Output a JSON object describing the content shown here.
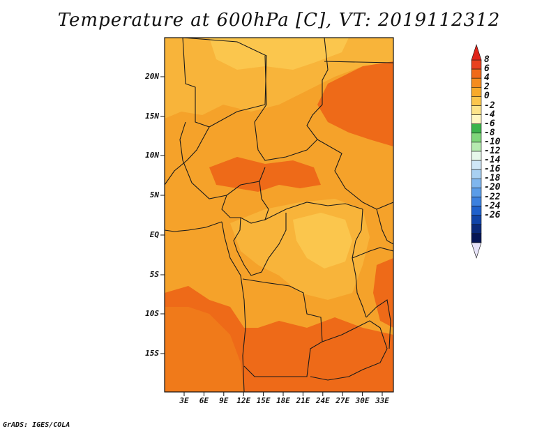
{
  "title": "Temperature at 600hPa [C], VT: 2019112312",
  "credit": "GrADS: IGES/COLA",
  "axes": {
    "y_ticks": [
      "20N",
      "15N",
      "10N",
      "5N",
      "EQ",
      "5S",
      "10S",
      "15S"
    ],
    "x_ticks": [
      "3E",
      "6E",
      "9E",
      "12E",
      "15E",
      "18E",
      "21E",
      "24E",
      "27E",
      "30E",
      "33E"
    ]
  },
  "colorbar": {
    "labels": [
      "8",
      "6",
      "4",
      "2",
      "0",
      "-2",
      "-4",
      "-6",
      "-8",
      "-10",
      "-12",
      "-14",
      "-16",
      "-18",
      "-20",
      "-22",
      "-24",
      "-26"
    ],
    "colors": [
      "#e8411d",
      "#f06a1a",
      "#f58c1f",
      "#f8aa2b",
      "#fbc64d",
      "#fde48a",
      "#fff7c2",
      "#3cb44b",
      "#7fd67a",
      "#b6eab0",
      "#e6f7ea",
      "#cfe6f7",
      "#a8d0f2",
      "#7fb6ee",
      "#5a9ce8",
      "#3b80df",
      "#1e60cc",
      "#1044a8",
      "#0b2a7a",
      "#061656"
    ],
    "over_color": "#e0241a",
    "under_color": "#e6e2f8"
  },
  "map_colors": {
    "ocean_warm": "#f07a1a",
    "base": "#f5a22a",
    "warm": "#f58c1f",
    "hot": "#ee6a18",
    "mild": "#f8b43a",
    "cool": "#fbc64d",
    "cooler": "#fde07a",
    "border": "#1a1a1a"
  }
}
